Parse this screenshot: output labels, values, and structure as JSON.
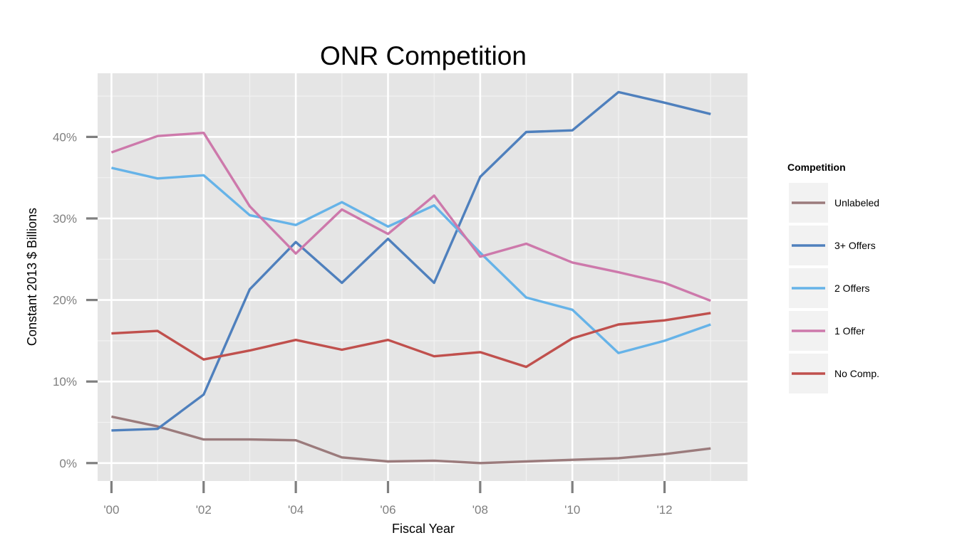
{
  "chart_data": {
    "type": "line",
    "title": "ONR Competition",
    "xlabel": "Fiscal Year",
    "ylabel": "Constant 2013 $ Billions",
    "x": [
      2000,
      2001,
      2002,
      2003,
      2004,
      2005,
      2006,
      2007,
      2008,
      2009,
      2010,
      2011,
      2012,
      2013
    ],
    "x_ticks": [
      2000,
      2002,
      2004,
      2006,
      2008,
      2010,
      2012
    ],
    "x_tick_labels": [
      "'00",
      "'02",
      "'04",
      "'06",
      "'08",
      "'10",
      "'12"
    ],
    "xlim": [
      1999.7,
      2013.8
    ],
    "ylim": [
      -2.2,
      47.8
    ],
    "y_ticks": [
      0,
      10,
      20,
      30,
      40
    ],
    "y_tick_labels": [
      "0%",
      "10%",
      "20%",
      "30%",
      "40%"
    ],
    "grid": true,
    "legend": {
      "title": "Competition",
      "position": "right"
    },
    "series": [
      {
        "name": "Unlabeled",
        "color": "#9b7b7c",
        "values": [
          5.7,
          4.5,
          2.9,
          2.9,
          2.8,
          0.7,
          0.2,
          0.3,
          0.0,
          0.2,
          0.4,
          0.6,
          1.1,
          1.8
        ]
      },
      {
        "name": "3+ Offers",
        "color": "#4f80bd",
        "values": [
          4.0,
          4.2,
          8.4,
          21.3,
          27.1,
          22.1,
          27.5,
          22.1,
          35.1,
          40.6,
          40.8,
          45.5,
          44.2,
          42.8
        ]
      },
      {
        "name": "2 Offers",
        "color": "#66b3e8",
        "values": [
          36.2,
          34.9,
          35.3,
          30.4,
          29.2,
          32.0,
          29.0,
          31.6,
          25.8,
          20.3,
          18.8,
          13.5,
          15.0,
          17.0
        ]
      },
      {
        "name": "1 Offer",
        "color": "#cd79ab",
        "values": [
          38.1,
          40.1,
          40.5,
          31.5,
          25.7,
          31.1,
          28.1,
          32.8,
          25.3,
          26.9,
          24.6,
          23.4,
          22.1,
          19.9
        ]
      },
      {
        "name": "No Comp.",
        "color": "#c0504d",
        "values": [
          15.9,
          16.2,
          12.7,
          13.8,
          15.1,
          13.9,
          15.1,
          13.1,
          13.6,
          11.8,
          15.3,
          17.0,
          17.5,
          18.4
        ]
      }
    ]
  }
}
